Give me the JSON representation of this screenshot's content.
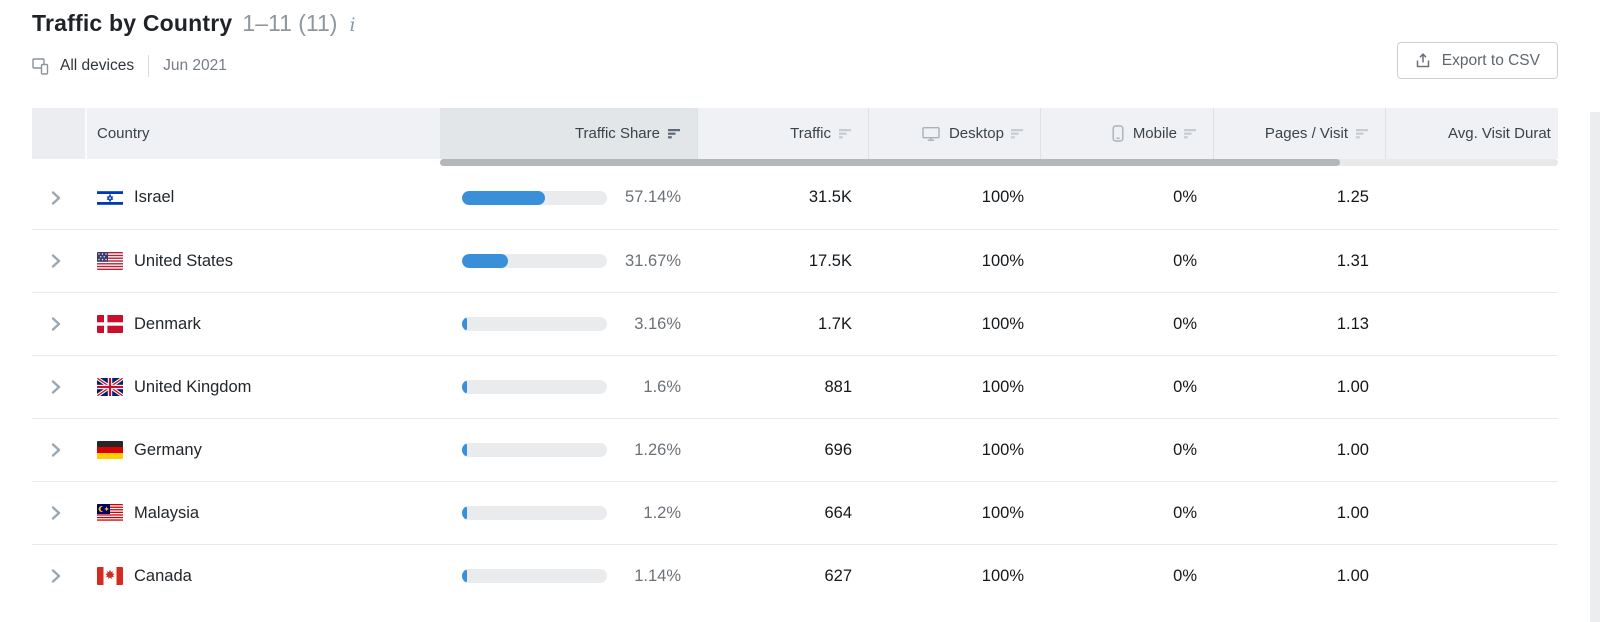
{
  "header": {
    "title": "Traffic by Country",
    "range_label": "1–11 (11)",
    "info_icon": "i"
  },
  "toolbar": {
    "devices_label": "All devices",
    "period_label": "Jun 2021",
    "export_label": "Export to CSV"
  },
  "colors": {
    "accent_blue": "#3990d9",
    "bar_track": "#e9ebed",
    "sorted_header_bg": "#e3e6e9",
    "scrollbar_thumb": "#b3b7bc",
    "row_sep": "#e8ebed"
  },
  "table": {
    "columns": [
      {
        "label": "Country",
        "sortable": false
      },
      {
        "label": "Traffic Share",
        "sortable": true,
        "sorted": true
      },
      {
        "label": "Traffic",
        "sortable": true
      },
      {
        "label": "Desktop",
        "sortable": true,
        "icon": "desktop-icon"
      },
      {
        "label": "Mobile",
        "sortable": true,
        "icon": "mobile-icon"
      },
      {
        "label": "Pages / Visit",
        "sortable": true
      },
      {
        "label": "Avg. Visit Durat",
        "sortable": true
      }
    ],
    "rows": [
      {
        "country": "Israel",
        "flag": "il",
        "traffic_share": "57.14%",
        "traffic_share_pct": 57.14,
        "traffic": "31.5K",
        "desktop": "100%",
        "mobile": "0%",
        "pages_visit": "1.25"
      },
      {
        "country": "United States",
        "flag": "us",
        "traffic_share": "31.67%",
        "traffic_share_pct": 31.67,
        "traffic": "17.5K",
        "desktop": "100%",
        "mobile": "0%",
        "pages_visit": "1.31"
      },
      {
        "country": "Denmark",
        "flag": "dk",
        "traffic_share": "3.16%",
        "traffic_share_pct": 3.16,
        "traffic": "1.7K",
        "desktop": "100%",
        "mobile": "0%",
        "pages_visit": "1.13"
      },
      {
        "country": "United Kingdom",
        "flag": "gb",
        "traffic_share": "1.6%",
        "traffic_share_pct": 1.6,
        "traffic": "881",
        "desktop": "100%",
        "mobile": "0%",
        "pages_visit": "1.00"
      },
      {
        "country": "Germany",
        "flag": "de",
        "traffic_share": "1.26%",
        "traffic_share_pct": 1.26,
        "traffic": "696",
        "desktop": "100%",
        "mobile": "0%",
        "pages_visit": "1.00"
      },
      {
        "country": "Malaysia",
        "flag": "my",
        "traffic_share": "1.2%",
        "traffic_share_pct": 1.2,
        "traffic": "664",
        "desktop": "100%",
        "mobile": "0%",
        "pages_visit": "1.00"
      },
      {
        "country": "Canada",
        "flag": "ca",
        "traffic_share": "1.14%",
        "traffic_share_pct": 1.14,
        "traffic": "627",
        "desktop": "100%",
        "mobile": "0%",
        "pages_visit": "1.00"
      }
    ]
  }
}
